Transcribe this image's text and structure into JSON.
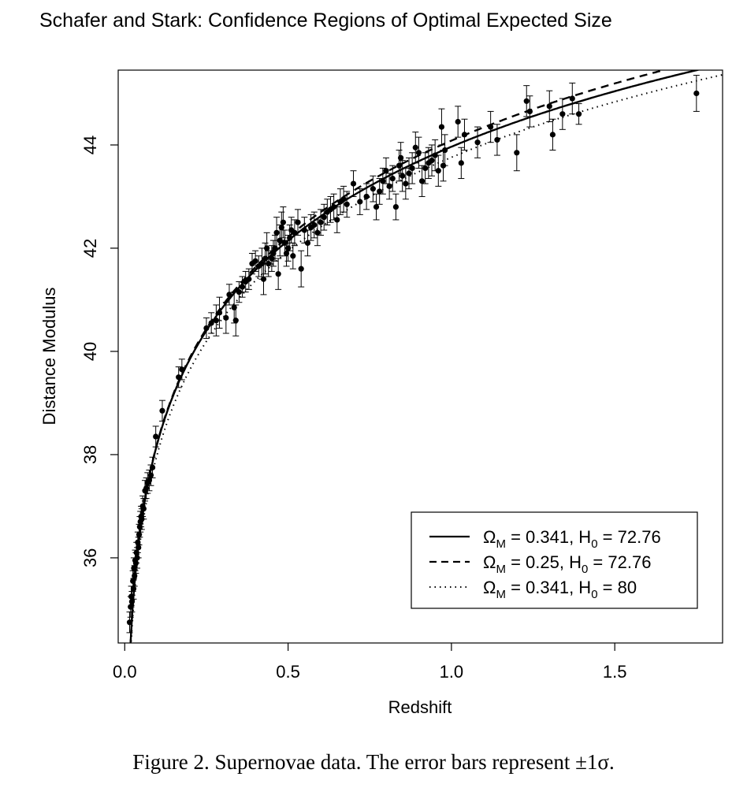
{
  "title": "Schafer and Stark: Confidence Regions of Optimal Expected Size",
  "caption": "Figure 2.  Supernovae data. The error bars represent ±1σ.",
  "chart_data": {
    "type": "scatter",
    "xlabel": "Redshift",
    "ylabel": "Distance Modulus",
    "xlim": [
      -0.02,
      1.83
    ],
    "ylim": [
      34.35,
      45.45
    ],
    "xticks": [
      "0.0",
      "0.5",
      "1.0",
      "1.5"
    ],
    "xtick_values": [
      0,
      0.5,
      1.0,
      1.5
    ],
    "yticks": [
      "36",
      "38",
      "40",
      "42",
      "44"
    ],
    "ytick_values": [
      36,
      38,
      40,
      42,
      44
    ],
    "grid": false,
    "legend_position": "bottom-right",
    "legend": [
      {
        "pre": "Ω",
        "sub1": "M",
        "mid": " = 0.341, H",
        "sub2": "0",
        "post": " = 72.76",
        "style": "solid"
      },
      {
        "pre": "Ω",
        "sub1": "M",
        "mid": " = 0.25, H",
        "sub2": "0",
        "post": " = 72.76",
        "style": "dashed"
      },
      {
        "pre": "Ω",
        "sub1": "M",
        "mid": " = 0.341, H",
        "sub2": "0",
        "post": " = 80",
        "style": "dotted"
      }
    ],
    "curves": [
      {
        "omega_m": 0.341,
        "h0": 72.76,
        "style": "solid"
      },
      {
        "omega_m": 0.25,
        "h0": 72.76,
        "style": "dashed"
      },
      {
        "omega_m": 0.341,
        "h0": 80,
        "style": "dotted"
      }
    ],
    "points": [
      [
        0.015,
        34.75,
        0.2
      ],
      [
        0.018,
        35.05,
        0.2
      ],
      [
        0.02,
        35.25,
        0.2
      ],
      [
        0.022,
        35.15,
        0.2
      ],
      [
        0.025,
        35.55,
        0.2
      ],
      [
        0.027,
        35.4,
        0.2
      ],
      [
        0.028,
        35.8,
        0.2
      ],
      [
        0.03,
        35.65,
        0.2
      ],
      [
        0.032,
        35.95,
        0.2
      ],
      [
        0.034,
        35.9,
        0.2
      ],
      [
        0.036,
        36.1,
        0.2
      ],
      [
        0.038,
        36.0,
        0.2
      ],
      [
        0.04,
        36.3,
        0.2
      ],
      [
        0.042,
        36.2,
        0.2
      ],
      [
        0.044,
        36.45,
        0.2
      ],
      [
        0.046,
        36.6,
        0.2
      ],
      [
        0.048,
        36.7,
        0.2
      ],
      [
        0.05,
        36.8,
        0.2
      ],
      [
        0.052,
        36.75,
        0.2
      ],
      [
        0.055,
        37.0,
        0.2
      ],
      [
        0.058,
        36.95,
        0.2
      ],
      [
        0.062,
        37.3,
        0.2
      ],
      [
        0.066,
        37.35,
        0.2
      ],
      [
        0.07,
        37.45,
        0.2
      ],
      [
        0.075,
        37.5,
        0.2
      ],
      [
        0.08,
        37.6,
        0.2
      ],
      [
        0.085,
        37.75,
        0.2
      ],
      [
        0.095,
        38.35,
        0.2
      ],
      [
        0.115,
        38.85,
        0.2
      ],
      [
        0.165,
        39.5,
        0.2
      ],
      [
        0.175,
        39.65,
        0.2
      ],
      [
        0.25,
        40.45,
        0.2
      ],
      [
        0.265,
        40.55,
        0.2
      ],
      [
        0.28,
        40.6,
        0.3
      ],
      [
        0.29,
        40.75,
        0.3
      ],
      [
        0.31,
        40.65,
        0.3
      ],
      [
        0.32,
        41.1,
        0.2
      ],
      [
        0.335,
        40.85,
        0.3
      ],
      [
        0.34,
        40.6,
        0.3
      ],
      [
        0.35,
        41.15,
        0.2
      ],
      [
        0.36,
        41.25,
        0.2
      ],
      [
        0.37,
        41.35,
        0.2
      ],
      [
        0.38,
        41.4,
        0.2
      ],
      [
        0.39,
        41.7,
        0.2
      ],
      [
        0.4,
        41.75,
        0.2
      ],
      [
        0.41,
        41.65,
        0.2
      ],
      [
        0.42,
        41.7,
        0.3
      ],
      [
        0.425,
        41.4,
        0.3
      ],
      [
        0.43,
        41.8,
        0.3
      ],
      [
        0.435,
        42.0,
        0.3
      ],
      [
        0.44,
        41.7,
        0.25
      ],
      [
        0.45,
        41.8,
        0.25
      ],
      [
        0.455,
        41.9,
        0.25
      ],
      [
        0.46,
        42.0,
        0.25
      ],
      [
        0.465,
        42.3,
        0.3
      ],
      [
        0.47,
        41.5,
        0.3
      ],
      [
        0.475,
        42.15,
        0.3
      ],
      [
        0.48,
        42.4,
        0.3
      ],
      [
        0.485,
        42.5,
        0.3
      ],
      [
        0.49,
        42.1,
        0.25
      ],
      [
        0.495,
        41.9,
        0.25
      ],
      [
        0.5,
        42.0,
        0.25
      ],
      [
        0.505,
        42.2,
        0.25
      ],
      [
        0.51,
        42.35,
        0.25
      ],
      [
        0.515,
        41.85,
        0.25
      ],
      [
        0.52,
        42.3,
        0.25
      ],
      [
        0.53,
        42.5,
        0.25
      ],
      [
        0.54,
        41.6,
        0.35
      ],
      [
        0.55,
        42.35,
        0.25
      ],
      [
        0.56,
        42.1,
        0.25
      ],
      [
        0.57,
        42.4,
        0.25
      ],
      [
        0.58,
        42.45,
        0.25
      ],
      [
        0.59,
        42.3,
        0.25
      ],
      [
        0.6,
        42.5,
        0.25
      ],
      [
        0.61,
        42.6,
        0.25
      ],
      [
        0.62,
        42.7,
        0.25
      ],
      [
        0.63,
        42.75,
        0.25
      ],
      [
        0.64,
        42.8,
        0.25
      ],
      [
        0.65,
        42.55,
        0.25
      ],
      [
        0.66,
        42.9,
        0.25
      ],
      [
        0.67,
        42.95,
        0.25
      ],
      [
        0.68,
        42.85,
        0.25
      ],
      [
        0.7,
        43.25,
        0.25
      ],
      [
        0.72,
        42.9,
        0.25
      ],
      [
        0.74,
        43.0,
        0.25
      ],
      [
        0.76,
        43.15,
        0.25
      ],
      [
        0.77,
        42.8,
        0.25
      ],
      [
        0.78,
        43.1,
        0.25
      ],
      [
        0.79,
        43.3,
        0.25
      ],
      [
        0.8,
        43.5,
        0.25
      ],
      [
        0.81,
        43.2,
        0.25
      ],
      [
        0.82,
        43.35,
        0.25
      ],
      [
        0.83,
        42.8,
        0.25
      ],
      [
        0.84,
        43.6,
        0.3
      ],
      [
        0.845,
        43.75,
        0.3
      ],
      [
        0.85,
        43.4,
        0.3
      ],
      [
        0.86,
        43.25,
        0.3
      ],
      [
        0.87,
        43.45,
        0.3
      ],
      [
        0.88,
        43.55,
        0.3
      ],
      [
        0.89,
        43.95,
        0.3
      ],
      [
        0.9,
        43.85,
        0.3
      ],
      [
        0.91,
        43.3,
        0.3
      ],
      [
        0.92,
        43.55,
        0.3
      ],
      [
        0.93,
        43.65,
        0.3
      ],
      [
        0.94,
        43.7,
        0.3
      ],
      [
        0.95,
        43.8,
        0.3
      ],
      [
        0.96,
        43.5,
        0.3
      ],
      [
        0.97,
        44.35,
        0.35
      ],
      [
        0.975,
        43.6,
        0.3
      ],
      [
        0.98,
        43.9,
        0.3
      ],
      [
        1.02,
        44.45,
        0.3
      ],
      [
        1.03,
        43.65,
        0.3
      ],
      [
        1.04,
        44.2,
        0.3
      ],
      [
        1.08,
        44.05,
        0.3
      ],
      [
        1.12,
        44.35,
        0.3
      ],
      [
        1.14,
        44.1,
        0.3
      ],
      [
        1.2,
        43.85,
        0.35
      ],
      [
        1.23,
        44.85,
        0.3
      ],
      [
        1.24,
        44.65,
        0.3
      ],
      [
        1.3,
        44.75,
        0.3
      ],
      [
        1.31,
        44.2,
        0.3
      ],
      [
        1.34,
        44.6,
        0.3
      ],
      [
        1.37,
        44.9,
        0.3
      ],
      [
        1.39,
        44.6,
        0.2
      ],
      [
        1.75,
        45.0,
        0.35
      ]
    ]
  }
}
